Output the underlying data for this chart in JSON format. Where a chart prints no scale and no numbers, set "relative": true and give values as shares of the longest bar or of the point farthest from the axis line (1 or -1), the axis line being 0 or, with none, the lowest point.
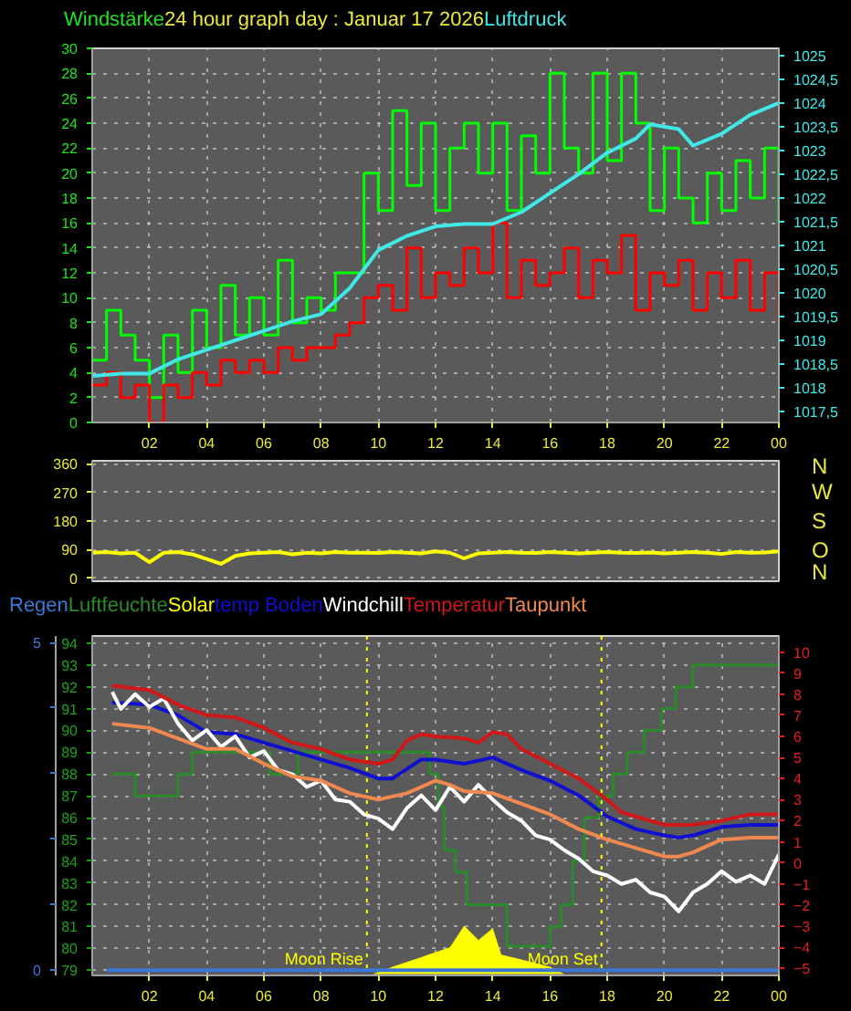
{
  "chart_data": [
    {
      "type": "step",
      "title": "24 hour graph day : Januar 17 2026",
      "ylabel": "Windstärke",
      "y2label": "Luftdruck",
      "x": [
        "2026-01-17T00:00",
        "2026-01-17T00:30",
        "2026-01-17T01:00",
        "2026-01-17T01:30",
        "2026-01-17T02:00",
        "2026-01-17T02:30",
        "2026-01-17T03:00",
        "2026-01-17T03:30",
        "2026-01-17T04:00",
        "2026-01-17T04:30",
        "2026-01-17T05:00",
        "2026-01-17T05:30",
        "2026-01-17T06:00",
        "2026-01-17T06:30",
        "2026-01-17T07:00",
        "2026-01-17T07:30",
        "2026-01-17T08:00",
        "2026-01-17T08:30",
        "2026-01-17T09:00",
        "2026-01-17T09:30",
        "2026-01-17T10:00",
        "2026-01-17T10:30",
        "2026-01-17T11:00",
        "2026-01-17T11:30",
        "2026-01-17T12:00",
        "2026-01-17T12:30",
        "2026-01-17T13:00",
        "2026-01-17T13:30",
        "2026-01-17T14:00",
        "2026-01-17T14:30",
        "2026-01-17T15:00",
        "2026-01-17T15:30",
        "2026-01-17T16:00",
        "2026-01-17T16:30",
        "2026-01-17T17:00",
        "2026-01-17T17:30",
        "2026-01-17T18:00",
        "2026-01-17T18:30",
        "2026-01-17T19:00",
        "2026-01-17T19:30",
        "2026-01-17T20:00",
        "2026-01-17T20:30",
        "2026-01-17T21:00",
        "2026-01-17T21:30",
        "2026-01-17T22:00",
        "2026-01-17T22:30",
        "2026-01-17T23:00",
        "2026-01-17T23:30",
        "2026-01-18T00:00"
      ],
      "series": [
        {
          "color": "#00ff00",
          "values": [
            5,
            9,
            7,
            5,
            2,
            7,
            4,
            9,
            6,
            11,
            7,
            10,
            7,
            13,
            8,
            10,
            9,
            12,
            12,
            20,
            17,
            25,
            19,
            24,
            17,
            22,
            24,
            20,
            24,
            17,
            23,
            20,
            28,
            22,
            20,
            28,
            21,
            28,
            24,
            17,
            22,
            18,
            16,
            20,
            17,
            21,
            18,
            22,
            16
          ]
        },
        {
          "color": "#ff0000",
          "values": [
            3,
            4,
            2,
            3,
            0,
            3,
            2,
            4,
            3,
            5,
            4,
            5,
            4,
            6,
            5,
            6,
            6,
            7,
            8,
            10,
            11,
            9,
            14,
            10,
            12,
            11,
            14,
            12,
            16,
            10,
            13,
            11,
            12,
            14,
            10,
            13,
            12,
            15,
            9,
            12,
            11,
            13,
            9,
            12,
            10,
            13,
            9,
            12,
            8
          ]
        },
        {
          "type": "line",
          "axis": "y2",
          "color": "#40e8e8",
          "x": [
            "2026-01-17T00:00",
            "2026-01-17T01:00",
            "2026-01-17T02:00",
            "2026-01-17T03:00",
            "2026-01-17T04:00",
            "2026-01-17T05:00",
            "2026-01-17T06:00",
            "2026-01-17T07:00",
            "2026-01-17T08:00",
            "2026-01-17T09:00",
            "2026-01-17T10:00",
            "2026-01-17T11:00",
            "2026-01-17T12:00",
            "2026-01-17T13:00",
            "2026-01-17T14:00",
            "2026-01-17T15:00",
            "2026-01-17T16:00",
            "2026-01-17T17:00",
            "2026-01-17T18:00",
            "2026-01-17T19:00",
            "2026-01-17T19:30",
            "2026-01-17T20:30",
            "2026-01-17T21:00",
            "2026-01-17T22:00",
            "2026-01-17T23:00",
            "2026-01-18T00:00"
          ],
          "values": [
            1018.25,
            1018.3,
            1018.3,
            1018.6,
            1018.8,
            1019.0,
            1019.2,
            1019.4,
            1019.55,
            1020.1,
            1020.9,
            1021.2,
            1021.4,
            1021.45,
            1021.45,
            1021.7,
            1022.1,
            1022.5,
            1022.95,
            1023.25,
            1023.55,
            1023.45,
            1023.1,
            1023.35,
            1023.75,
            1024.0
          ]
        }
      ],
      "xlim": [
        "2026-01-17T00:00",
        "2026-01-18T00:00"
      ],
      "xticks": [
        {
          "value": "2026-01-17T02:00",
          "label": "02"
        },
        {
          "value": "2026-01-17T04:00",
          "label": "04"
        },
        {
          "value": "2026-01-17T06:00",
          "label": "06"
        },
        {
          "value": "2026-01-17T08:00",
          "label": "08"
        },
        {
          "value": "2026-01-17T10:00",
          "label": "10"
        },
        {
          "value": "2026-01-17T12:00",
          "label": "12"
        },
        {
          "value": "2026-01-17T14:00",
          "label": "14"
        },
        {
          "value": "2026-01-17T16:00",
          "label": "16"
        },
        {
          "value": "2026-01-17T18:00",
          "label": "18"
        },
        {
          "value": "2026-01-17T20:00",
          "label": "20"
        },
        {
          "value": "2026-01-17T22:00",
          "label": "22"
        },
        {
          "value": "2026-01-18T00:00",
          "label": "00"
        }
      ],
      "ylim": [
        0,
        30
      ],
      "yticks": [
        0,
        2,
        4,
        6,
        8,
        10,
        12,
        14,
        16,
        18,
        20,
        22,
        24,
        26,
        28,
        30
      ],
      "y2lim": [
        1017.27,
        1025.15
      ],
      "y2ticks": [
        {
          "value": 1017.5,
          "label": "1017,5"
        },
        1018,
        {
          "value": 1018.5,
          "label": "1018,5"
        },
        1019,
        {
          "value": 1019.5,
          "label": "1019,5"
        },
        1020,
        {
          "value": 1020.5,
          "label": "1020,5"
        },
        1021,
        {
          "value": 1021.5,
          "label": "1021,5"
        },
        1022,
        {
          "value": 1022.5,
          "label": "1022,5"
        },
        1023,
        {
          "value": 1023.5,
          "label": "1023,5"
        },
        1024,
        {
          "value": 1024.5,
          "label": "1024,5"
        },
        1025
      ],
      "grid": true
    },
    {
      "type": "line",
      "tick_labels": "y",
      "x": [
        "2026-01-17T00:00",
        "2026-01-17T00:30",
        "2026-01-17T01:00",
        "2026-01-17T01:30",
        "2026-01-17T02:00",
        "2026-01-17T02:30",
        "2026-01-17T03:00",
        "2026-01-17T03:30",
        "2026-01-17T04:00",
        "2026-01-17T04:30",
        "2026-01-17T05:00",
        "2026-01-17T05:30",
        "2026-01-17T06:00",
        "2026-01-17T06:30",
        "2026-01-17T07:00",
        "2026-01-17T07:30",
        "2026-01-17T08:00",
        "2026-01-17T08:30",
        "2026-01-17T09:00",
        "2026-01-17T09:30",
        "2026-01-17T10:00",
        "2026-01-17T10:30",
        "2026-01-17T11:00",
        "2026-01-17T11:30",
        "2026-01-17T12:00",
        "2026-01-17T12:30",
        "2026-01-17T13:00",
        "2026-01-17T13:30",
        "2026-01-17T14:00",
        "2026-01-17T14:30",
        "2026-01-17T15:00",
        "2026-01-17T15:30",
        "2026-01-17T16:00",
        "2026-01-17T16:30",
        "2026-01-17T17:00",
        "2026-01-17T17:30",
        "2026-01-17T18:00",
        "2026-01-17T18:30",
        "2026-01-17T19:00",
        "2026-01-17T19:30",
        "2026-01-17T20:00",
        "2026-01-17T20:30",
        "2026-01-17T21:00",
        "2026-01-17T21:30",
        "2026-01-17T22:00",
        "2026-01-17T22:30",
        "2026-01-17T23:00",
        "2026-01-17T23:30",
        "2026-01-18T00:00"
      ],
      "series": [
        {
          "color": "#ffff00",
          "values": [
            80,
            82,
            78,
            80,
            50,
            80,
            82,
            75,
            60,
            45,
            70,
            78,
            80,
            82,
            75,
            80,
            78,
            82,
            80,
            80,
            79,
            82,
            80,
            78,
            84,
            80,
            62,
            78,
            80,
            82,
            80,
            79,
            82,
            80,
            78,
            80,
            82,
            80,
            79,
            81,
            78,
            80,
            82,
            80,
            76,
            82,
            80,
            81,
            84
          ]
        }
      ],
      "xlim": [
        "2026-01-17T00:00",
        "2026-01-18T00:00"
      ],
      "ylim": [
        -10,
        370
      ],
      "yticks": [
        0,
        90,
        180,
        270,
        360
      ],
      "annotations": [
        "N",
        "W",
        "S",
        "O",
        "N"
      ],
      "grid": "y"
    },
    {
      "type": "line",
      "series": [
        {
          "name": "Regen",
          "axis": "y2",
          "color": "#3a78d8",
          "x": [
            "2026-01-17T00:30",
            "2026-01-18T00:00"
          ],
          "values": [
            0,
            0
          ]
        },
        {
          "name": "Luftfeuchte",
          "type": "step",
          "color": "#2a8a2a",
          "x": [
            "2026-01-17T00:42",
            "2026-01-17T01:30",
            "2026-01-17T03:00",
            "2026-01-17T03:30",
            "2026-01-17T06:12",
            "2026-01-17T07:12",
            "2026-01-17T11:48",
            "2026-01-17T12:06",
            "2026-01-17T12:18",
            "2026-01-17T12:42",
            "2026-01-17T13:06",
            "2026-01-17T14:30",
            "2026-01-17T16:00",
            "2026-01-17T16:24",
            "2026-01-17T16:48",
            "2026-01-17T17:12",
            "2026-01-17T17:42",
            "2026-01-17T18:12",
            "2026-01-17T18:42",
            "2026-01-17T19:18",
            "2026-01-17T19:54",
            "2026-01-17T20:24",
            "2026-01-17T21:00",
            "2026-01-17T21:30",
            "2026-01-18T00:00"
          ],
          "values": [
            88,
            87,
            88,
            89,
            88,
            89,
            88,
            86.5,
            84.5,
            83.5,
            82,
            80.1,
            81,
            82,
            84,
            86,
            87,
            88,
            89,
            90,
            91,
            92,
            93,
            93,
            93
          ]
        },
        {
          "name": "temp Boden",
          "axis": "y3",
          "color": "#1010d0",
          "x": [
            "2026-01-17T00:42",
            "2026-01-17T02:00",
            "2026-01-17T03:00",
            "2026-01-17T04:00",
            "2026-01-17T05:00",
            "2026-01-17T06:00",
            "2026-01-17T07:00",
            "2026-01-17T08:00",
            "2026-01-17T09:00",
            "2026-01-17T10:00",
            "2026-01-17T10:30",
            "2026-01-17T11:30",
            "2026-01-17T12:00",
            "2026-01-17T13:00",
            "2026-01-17T14:00",
            "2026-01-17T15:00",
            "2026-01-17T16:00",
            "2026-01-17T17:00",
            "2026-01-17T18:00",
            "2026-01-17T19:00",
            "2026-01-17T20:00",
            "2026-01-17T20:30",
            "2026-01-17T21:00",
            "2026-01-17T22:00",
            "2026-01-17T23:00",
            "2026-01-18T00:00"
          ],
          "values": [
            7.6,
            7.5,
            7.0,
            6.2,
            6.1,
            5.7,
            5.3,
            4.9,
            4.5,
            4.0,
            4.0,
            4.9,
            4.9,
            4.7,
            5.0,
            4.4,
            3.9,
            3.2,
            2.2,
            1.6,
            1.3,
            1.2,
            1.3,
            1.7,
            1.8,
            1.8
          ]
        },
        {
          "name": "Windchill",
          "axis": "y3",
          "color": "#ffffff",
          "x": [
            "2026-01-17T00:42",
            "2026-01-17T01:00",
            "2026-01-17T01:30",
            "2026-01-17T02:00",
            "2026-01-17T02:30",
            "2026-01-17T03:00",
            "2026-01-17T03:30",
            "2026-01-17T04:00",
            "2026-01-17T04:30",
            "2026-01-17T05:00",
            "2026-01-17T05:30",
            "2026-01-17T06:00",
            "2026-01-17T06:30",
            "2026-01-17T07:00",
            "2026-01-17T07:30",
            "2026-01-17T08:00",
            "2026-01-17T08:30",
            "2026-01-17T09:00",
            "2026-01-17T09:30",
            "2026-01-17T10:00",
            "2026-01-17T10:30",
            "2026-01-17T11:00",
            "2026-01-17T11:30",
            "2026-01-17T12:00",
            "2026-01-17T12:30",
            "2026-01-17T13:00",
            "2026-01-17T13:30",
            "2026-01-17T14:00",
            "2026-01-17T14:30",
            "2026-01-17T15:00",
            "2026-01-17T15:30",
            "2026-01-17T16:00",
            "2026-01-17T16:30",
            "2026-01-17T17:00",
            "2026-01-17T17:30",
            "2026-01-17T18:00",
            "2026-01-17T18:30",
            "2026-01-17T19:00",
            "2026-01-17T19:30",
            "2026-01-17T20:00",
            "2026-01-17T20:30",
            "2026-01-17T21:00",
            "2026-01-17T21:30",
            "2026-01-17T22:00",
            "2026-01-17T22:30",
            "2026-01-17T23:00",
            "2026-01-17T23:30",
            "2026-01-18T00:00"
          ],
          "values": [
            8.1,
            7.3,
            8.0,
            7.4,
            7.8,
            6.6,
            5.8,
            6.3,
            5.5,
            6.0,
            5.0,
            5.3,
            4.4,
            4.2,
            3.6,
            3.9,
            3.0,
            2.9,
            2.3,
            2.1,
            1.6,
            2.6,
            3.2,
            2.5,
            3.6,
            2.9,
            3.7,
            3.0,
            2.4,
            2.0,
            1.3,
            1.1,
            0.6,
            0.2,
            -0.4,
            -0.6,
            -1.0,
            -0.8,
            -1.4,
            -1.6,
            -2.3,
            -1.4,
            -1.0,
            -0.4,
            -0.9,
            -0.6,
            -1.0,
            0.4
          ]
        },
        {
          "name": "Temperatur",
          "axis": "y3",
          "color": "#d01818",
          "x": [
            "2026-01-17T00:42",
            "2026-01-17T02:00",
            "2026-01-17T03:00",
            "2026-01-17T04:00",
            "2026-01-17T05:00",
            "2026-01-17T06:00",
            "2026-01-17T07:00",
            "2026-01-17T08:00",
            "2026-01-17T09:00",
            "2026-01-17T10:00",
            "2026-01-17T10:30",
            "2026-01-17T11:00",
            "2026-01-17T11:30",
            "2026-01-17T12:00",
            "2026-01-17T13:00",
            "2026-01-17T13:30",
            "2026-01-17T14:00",
            "2026-01-17T14:30",
            "2026-01-17T15:00",
            "2026-01-17T16:00",
            "2026-01-17T17:00",
            "2026-01-17T18:00",
            "2026-01-17T18:30",
            "2026-01-17T19:00",
            "2026-01-17T20:00",
            "2026-01-17T21:00",
            "2026-01-17T22:00",
            "2026-01-17T23:00",
            "2026-01-18T00:00"
          ],
          "values": [
            8.4,
            8.2,
            7.5,
            7.0,
            6.9,
            6.4,
            5.7,
            5.4,
            4.9,
            4.7,
            4.9,
            5.8,
            6.1,
            6.0,
            5.9,
            5.7,
            6.2,
            6.1,
            5.4,
            4.7,
            4.0,
            3.0,
            2.4,
            2.2,
            1.8,
            1.8,
            2.0,
            2.3,
            2.3
          ]
        },
        {
          "name": "Taupunkt",
          "axis": "y3",
          "color": "#f08850",
          "x": [
            "2026-01-17T00:42",
            "2026-01-17T02:00",
            "2026-01-17T03:00",
            "2026-01-17T04:00",
            "2026-01-17T05:00",
            "2026-01-17T06:00",
            "2026-01-17T07:00",
            "2026-01-17T08:00",
            "2026-01-17T09:00",
            "2026-01-17T10:00",
            "2026-01-17T11:00",
            "2026-01-17T12:00",
            "2026-01-17T12:30",
            "2026-01-17T13:00",
            "2026-01-17T14:00",
            "2026-01-17T15:00",
            "2026-01-17T16:00",
            "2026-01-17T17:00",
            "2026-01-17T18:00",
            "2026-01-17T19:00",
            "2026-01-17T20:00",
            "2026-01-17T20:30",
            "2026-01-17T21:00",
            "2026-01-17T22:00",
            "2026-01-17T23:00",
            "2026-01-18T00:00"
          ],
          "values": [
            6.6,
            6.4,
            5.9,
            5.4,
            5.4,
            4.7,
            4.1,
            3.9,
            3.3,
            3.0,
            3.3,
            3.9,
            3.7,
            3.4,
            3.3,
            2.8,
            2.3,
            1.6,
            1.1,
            0.7,
            0.3,
            0.3,
            0.5,
            1.1,
            1.2,
            1.2
          ]
        }
      ],
      "xlim": [
        "2026-01-17T00:00",
        "2026-01-18T00:00"
      ],
      "xticks": [
        {
          "value": "2026-01-17T02:00",
          "label": "02"
        },
        {
          "value": "2026-01-17T04:00",
          "label": "04"
        },
        {
          "value": "2026-01-17T06:00",
          "label": "06"
        },
        {
          "value": "2026-01-17T08:00",
          "label": "08"
        },
        {
          "value": "2026-01-17T10:00",
          "label": "10"
        },
        {
          "value": "2026-01-17T12:00",
          "label": "12"
        },
        {
          "value": "2026-01-17T14:00",
          "label": "14"
        },
        {
          "value": "2026-01-17T16:00",
          "label": "16"
        },
        {
          "value": "2026-01-17T18:00",
          "label": "18"
        },
        {
          "value": "2026-01-17T20:00",
          "label": "20"
        },
        {
          "value": "2026-01-17T22:00",
          "label": "22"
        },
        {
          "value": "2026-01-18T00:00",
          "label": "00"
        }
      ],
      "ylim": [
        78.76,
        94.33
      ],
      "yticks": [
        79,
        80,
        81,
        82,
        83,
        84,
        85,
        86,
        87,
        88,
        89,
        90,
        91,
        92,
        93,
        94
      ],
      "y2lim": [
        -0.08,
        5.1
      ],
      "y2ticks": [
        0,
        {
          "value": 1,
          "label": null
        },
        {
          "value": 2,
          "label": null
        },
        {
          "value": 3,
          "label": null
        },
        {
          "value": 4,
          "label": null
        },
        5
      ],
      "y3lim": [
        -5.34,
        10.76
      ],
      "y3ticks": [
        -5,
        -4,
        -3,
        -2,
        -1,
        0,
        1,
        2,
        3,
        4,
        5,
        6,
        7,
        8,
        9,
        10
      ],
      "ref_lines": [
        {
          "axis": "x",
          "value": "2026-01-17T09:36",
          "label": "Moon Rise",
          "color": "#ffff00",
          "line_style": "dotted"
        },
        {
          "axis": "x",
          "value": "2026-01-17T17:48",
          "label": "Moon Set",
          "color": "#ffff00",
          "line_style": "dotted"
        }
      ],
      "grid": true
    },
    {
      "type": "area",
      "relative": true,
      "tick_labels": false,
      "series": [
        {
          "name": "Solar",
          "color": "#ffff00",
          "x": [
            "2026-01-17T09:48",
            "2026-01-17T10:30",
            "2026-01-17T11:00",
            "2026-01-17T11:30",
            "2026-01-17T12:00",
            "2026-01-17T12:30",
            "2026-01-17T13:00",
            "2026-01-17T13:30",
            "2026-01-17T14:00",
            "2026-01-17T14:18",
            "2026-01-17T15:00",
            "2026-01-17T16:00",
            "2026-01-17T16:30"
          ],
          "values": [
            0,
            0.15,
            0.25,
            0.35,
            0.45,
            0.55,
            1,
            0.7,
            0.95,
            0.4,
            0.3,
            0.15,
            0
          ]
        }
      ],
      "xlim": [
        "2026-01-17T00:00",
        "2026-01-18T00:00"
      ]
    }
  ]
}
